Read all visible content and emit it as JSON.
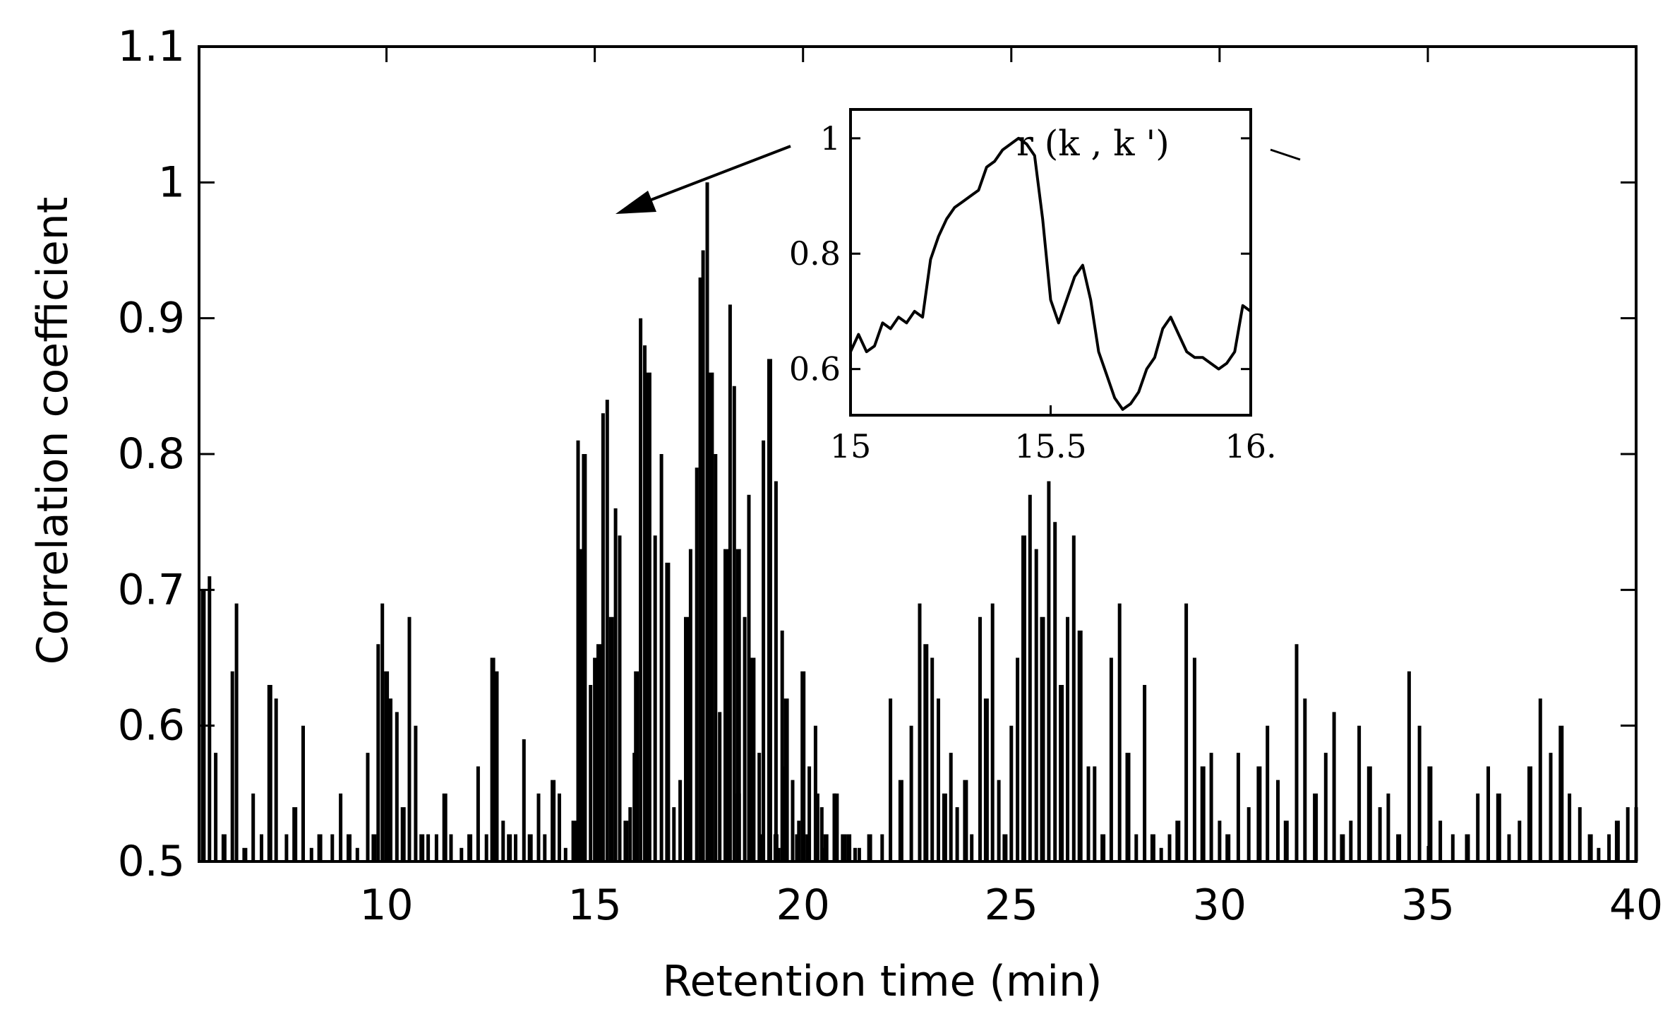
{
  "chart_data": {
    "type": "line",
    "title": "",
    "xlabel": "Retention time (min)",
    "ylabel": "Correlation coefficient",
    "xlim": [
      5.5,
      40
    ],
    "ylim": [
      0.5,
      1.1
    ],
    "xticks": [
      10,
      15,
      20,
      25,
      30,
      35,
      40
    ],
    "yticks": [
      0.5,
      0.6,
      0.7,
      0.8,
      0.9,
      1.0,
      1.1
    ],
    "ytick_labels": [
      "0.5",
      "0.6",
      "0.7",
      "0.8",
      "0.9",
      "1",
      "1.1"
    ],
    "grid": false,
    "legend": "none",
    "series": [
      {
        "style": "spikes",
        "color": "#000000",
        "points": [
          [
            5.6,
            0.7
          ],
          [
            5.75,
            0.71
          ],
          [
            5.9,
            0.58
          ],
          [
            6.1,
            0.52
          ],
          [
            6.3,
            0.64
          ],
          [
            6.4,
            0.69
          ],
          [
            6.6,
            0.51
          ],
          [
            6.8,
            0.55
          ],
          [
            7.0,
            0.52
          ],
          [
            7.2,
            0.63
          ],
          [
            7.35,
            0.62
          ],
          [
            7.6,
            0.52
          ],
          [
            7.8,
            0.54
          ],
          [
            8.0,
            0.6
          ],
          [
            8.2,
            0.51
          ],
          [
            8.4,
            0.52
          ],
          [
            8.7,
            0.52
          ],
          [
            8.9,
            0.55
          ],
          [
            9.1,
            0.52
          ],
          [
            9.3,
            0.51
          ],
          [
            9.55,
            0.58
          ],
          [
            9.7,
            0.52
          ],
          [
            9.8,
            0.66
          ],
          [
            9.9,
            0.69
          ],
          [
            10.0,
            0.64
          ],
          [
            10.1,
            0.62
          ],
          [
            10.25,
            0.61
          ],
          [
            10.4,
            0.54
          ],
          [
            10.55,
            0.68
          ],
          [
            10.7,
            0.6
          ],
          [
            10.85,
            0.52
          ],
          [
            11.0,
            0.52
          ],
          [
            11.2,
            0.52
          ],
          [
            11.4,
            0.55
          ],
          [
            11.55,
            0.52
          ],
          [
            11.8,
            0.51
          ],
          [
            12.0,
            0.52
          ],
          [
            12.2,
            0.57
          ],
          [
            12.4,
            0.52
          ],
          [
            12.55,
            0.65
          ],
          [
            12.65,
            0.64
          ],
          [
            12.8,
            0.53
          ],
          [
            12.95,
            0.52
          ],
          [
            13.1,
            0.52
          ],
          [
            13.3,
            0.59
          ],
          [
            13.45,
            0.52
          ],
          [
            13.65,
            0.55
          ],
          [
            13.8,
            0.52
          ],
          [
            14.0,
            0.56
          ],
          [
            14.15,
            0.55
          ],
          [
            14.3,
            0.51
          ],
          [
            14.5,
            0.53
          ],
          [
            14.6,
            0.81
          ],
          [
            14.65,
            0.73
          ],
          [
            14.75,
            0.8
          ],
          [
            14.9,
            0.63
          ],
          [
            15.0,
            0.65
          ],
          [
            15.1,
            0.66
          ],
          [
            15.2,
            0.83
          ],
          [
            15.3,
            0.84
          ],
          [
            15.4,
            0.68
          ],
          [
            15.5,
            0.76
          ],
          [
            15.6,
            0.74
          ],
          [
            15.75,
            0.53
          ],
          [
            15.85,
            0.54
          ],
          [
            15.95,
            0.58
          ],
          [
            16.0,
            0.64
          ],
          [
            16.1,
            0.9
          ],
          [
            16.2,
            0.88
          ],
          [
            16.3,
            0.86
          ],
          [
            16.45,
            0.74
          ],
          [
            16.6,
            0.8
          ],
          [
            16.75,
            0.72
          ],
          [
            16.9,
            0.54
          ],
          [
            17.05,
            0.56
          ],
          [
            17.2,
            0.68
          ],
          [
            17.3,
            0.73
          ],
          [
            17.45,
            0.79
          ],
          [
            17.55,
            0.93
          ],
          [
            17.6,
            0.95
          ],
          [
            17.7,
            1.0
          ],
          [
            17.8,
            0.86
          ],
          [
            17.9,
            0.8
          ],
          [
            18.0,
            0.61
          ],
          [
            18.15,
            0.73
          ],
          [
            18.25,
            0.91
          ],
          [
            18.35,
            0.85
          ],
          [
            18.45,
            0.73
          ],
          [
            18.6,
            0.68
          ],
          [
            18.7,
            0.77
          ],
          [
            18.8,
            0.65
          ],
          [
            18.95,
            0.58
          ],
          [
            19.05,
            0.81
          ],
          [
            19.2,
            0.87
          ],
          [
            19.35,
            0.78
          ],
          [
            19.5,
            0.67
          ],
          [
            19.6,
            0.62
          ],
          [
            19.75,
            0.56
          ],
          [
            19.85,
            0.52
          ],
          [
            20.0,
            0.64
          ],
          [
            20.15,
            0.57
          ],
          [
            20.35,
            0.55
          ],
          [
            20.55,
            0.52
          ],
          [
            20.75,
            0.55
          ],
          [
            20.95,
            0.52
          ],
          [
            21.1,
            0.52
          ],
          [
            21.25,
            0.51
          ],
          [
            18.2,
            0.6
          ],
          [
            18.45,
            0.55
          ],
          [
            18.7,
            0.54
          ],
          [
            19.0,
            0.52
          ],
          [
            19.35,
            0.52
          ],
          [
            19.55,
            0.57
          ],
          [
            19.9,
            0.53
          ],
          [
            20.5,
            0.51
          ],
          [
            20.3,
            0.6
          ],
          [
            19.0,
            0.51
          ],
          [
            19.4,
            0.51
          ],
          [
            20.1,
            0.52
          ],
          [
            20.45,
            0.54
          ],
          [
            20.8,
            0.55
          ],
          [
            21.0,
            0.52
          ],
          [
            21.35,
            0.51
          ],
          [
            21.6,
            0.52
          ],
          [
            21.9,
            0.52
          ],
          [
            22.1,
            0.62
          ],
          [
            22.35,
            0.56
          ],
          [
            22.6,
            0.6
          ],
          [
            22.8,
            0.69
          ],
          [
            22.95,
            0.66
          ],
          [
            23.1,
            0.65
          ],
          [
            23.25,
            0.62
          ],
          [
            23.4,
            0.55
          ],
          [
            23.55,
            0.58
          ],
          [
            23.7,
            0.54
          ],
          [
            23.9,
            0.56
          ],
          [
            24.05,
            0.52
          ],
          [
            24.25,
            0.68
          ],
          [
            24.4,
            0.62
          ],
          [
            24.55,
            0.69
          ],
          [
            24.7,
            0.56
          ],
          [
            24.85,
            0.52
          ],
          [
            25.0,
            0.6
          ],
          [
            25.15,
            0.65
          ],
          [
            25.3,
            0.74
          ],
          [
            25.45,
            0.77
          ],
          [
            25.6,
            0.73
          ],
          [
            25.75,
            0.68
          ],
          [
            25.9,
            0.78
          ],
          [
            26.05,
            0.75
          ],
          [
            26.2,
            0.63
          ],
          [
            26.35,
            0.68
          ],
          [
            26.5,
            0.74
          ],
          [
            26.65,
            0.67
          ],
          [
            26.85,
            0.57
          ],
          [
            27.0,
            0.57
          ],
          [
            27.2,
            0.52
          ],
          [
            27.4,
            0.65
          ],
          [
            27.6,
            0.69
          ],
          [
            27.8,
            0.58
          ],
          [
            28.0,
            0.52
          ],
          [
            28.2,
            0.63
          ],
          [
            28.4,
            0.52
          ],
          [
            28.6,
            0.51
          ],
          [
            28.8,
            0.52
          ],
          [
            29.0,
            0.53
          ],
          [
            29.2,
            0.69
          ],
          [
            29.4,
            0.65
          ],
          [
            29.6,
            0.57
          ],
          [
            29.8,
            0.58
          ],
          [
            30.0,
            0.53
          ],
          [
            30.2,
            0.52
          ],
          [
            30.45,
            0.58
          ],
          [
            30.7,
            0.54
          ],
          [
            30.95,
            0.57
          ],
          [
            31.15,
            0.6
          ],
          [
            31.4,
            0.56
          ],
          [
            31.6,
            0.53
          ],
          [
            31.85,
            0.66
          ],
          [
            32.05,
            0.62
          ],
          [
            32.3,
            0.55
          ],
          [
            32.55,
            0.58
          ],
          [
            32.75,
            0.61
          ],
          [
            32.95,
            0.52
          ],
          [
            33.15,
            0.53
          ],
          [
            33.35,
            0.6
          ],
          [
            33.6,
            0.57
          ],
          [
            33.85,
            0.54
          ],
          [
            34.05,
            0.55
          ],
          [
            34.3,
            0.52
          ],
          [
            34.55,
            0.64
          ],
          [
            34.8,
            0.6
          ],
          [
            35.05,
            0.57
          ],
          [
            35.3,
            0.53
          ],
          [
            35.6,
            0.52
          ],
          [
            35.95,
            0.52
          ],
          [
            36.2,
            0.55
          ],
          [
            36.45,
            0.57
          ],
          [
            36.7,
            0.55
          ],
          [
            36.95,
            0.52
          ],
          [
            37.2,
            0.53
          ],
          [
            37.45,
            0.57
          ],
          [
            37.7,
            0.62
          ],
          [
            37.95,
            0.58
          ],
          [
            38.2,
            0.6
          ],
          [
            38.4,
            0.55
          ],
          [
            38.65,
            0.54
          ],
          [
            38.9,
            0.52
          ],
          [
            39.1,
            0.51
          ],
          [
            39.35,
            0.52
          ],
          [
            39.55,
            0.53
          ],
          [
            39.8,
            0.54
          ],
          [
            40.0,
            0.54
          ]
        ]
      }
    ],
    "inset": {
      "type": "line",
      "annotation": "r (k , k ')",
      "xlim": [
        15,
        16
      ],
      "ylim": [
        0.52,
        1.05
      ],
      "xticks": [
        15,
        15.5,
        16
      ],
      "xtick_labels": [
        "15",
        "15.5",
        "16."
      ],
      "yticks": [
        0.6,
        0.8,
        1.0
      ],
      "ytick_labels": [
        "0.6",
        "0.8",
        "1"
      ],
      "x": [
        15.0,
        15.02,
        15.04,
        15.06,
        15.08,
        15.1,
        15.12,
        15.14,
        15.16,
        15.18,
        15.2,
        15.22,
        15.24,
        15.26,
        15.28,
        15.3,
        15.32,
        15.34,
        15.36,
        15.38,
        15.4,
        15.42,
        15.44,
        15.46,
        15.48,
        15.5,
        15.52,
        15.54,
        15.56,
        15.58,
        15.6,
        15.62,
        15.64,
        15.66,
        15.68,
        15.7,
        15.72,
        15.74,
        15.76,
        15.78,
        15.8,
        15.82,
        15.84,
        15.86,
        15.88,
        15.9,
        15.92,
        15.94,
        15.96,
        15.98,
        16.0
      ],
      "y": [
        0.63,
        0.66,
        0.63,
        0.64,
        0.68,
        0.67,
        0.69,
        0.68,
        0.7,
        0.69,
        0.79,
        0.83,
        0.86,
        0.88,
        0.89,
        0.9,
        0.91,
        0.95,
        0.96,
        0.98,
        0.99,
        1.0,
        0.99,
        0.97,
        0.86,
        0.72,
        0.68,
        0.72,
        0.76,
        0.78,
        0.72,
        0.63,
        0.59,
        0.55,
        0.53,
        0.54,
        0.56,
        0.6,
        0.62,
        0.67,
        0.69,
        0.66,
        0.63,
        0.62,
        0.62,
        0.61,
        0.6,
        0.61,
        0.63,
        0.71,
        0.7
      ]
    }
  }
}
